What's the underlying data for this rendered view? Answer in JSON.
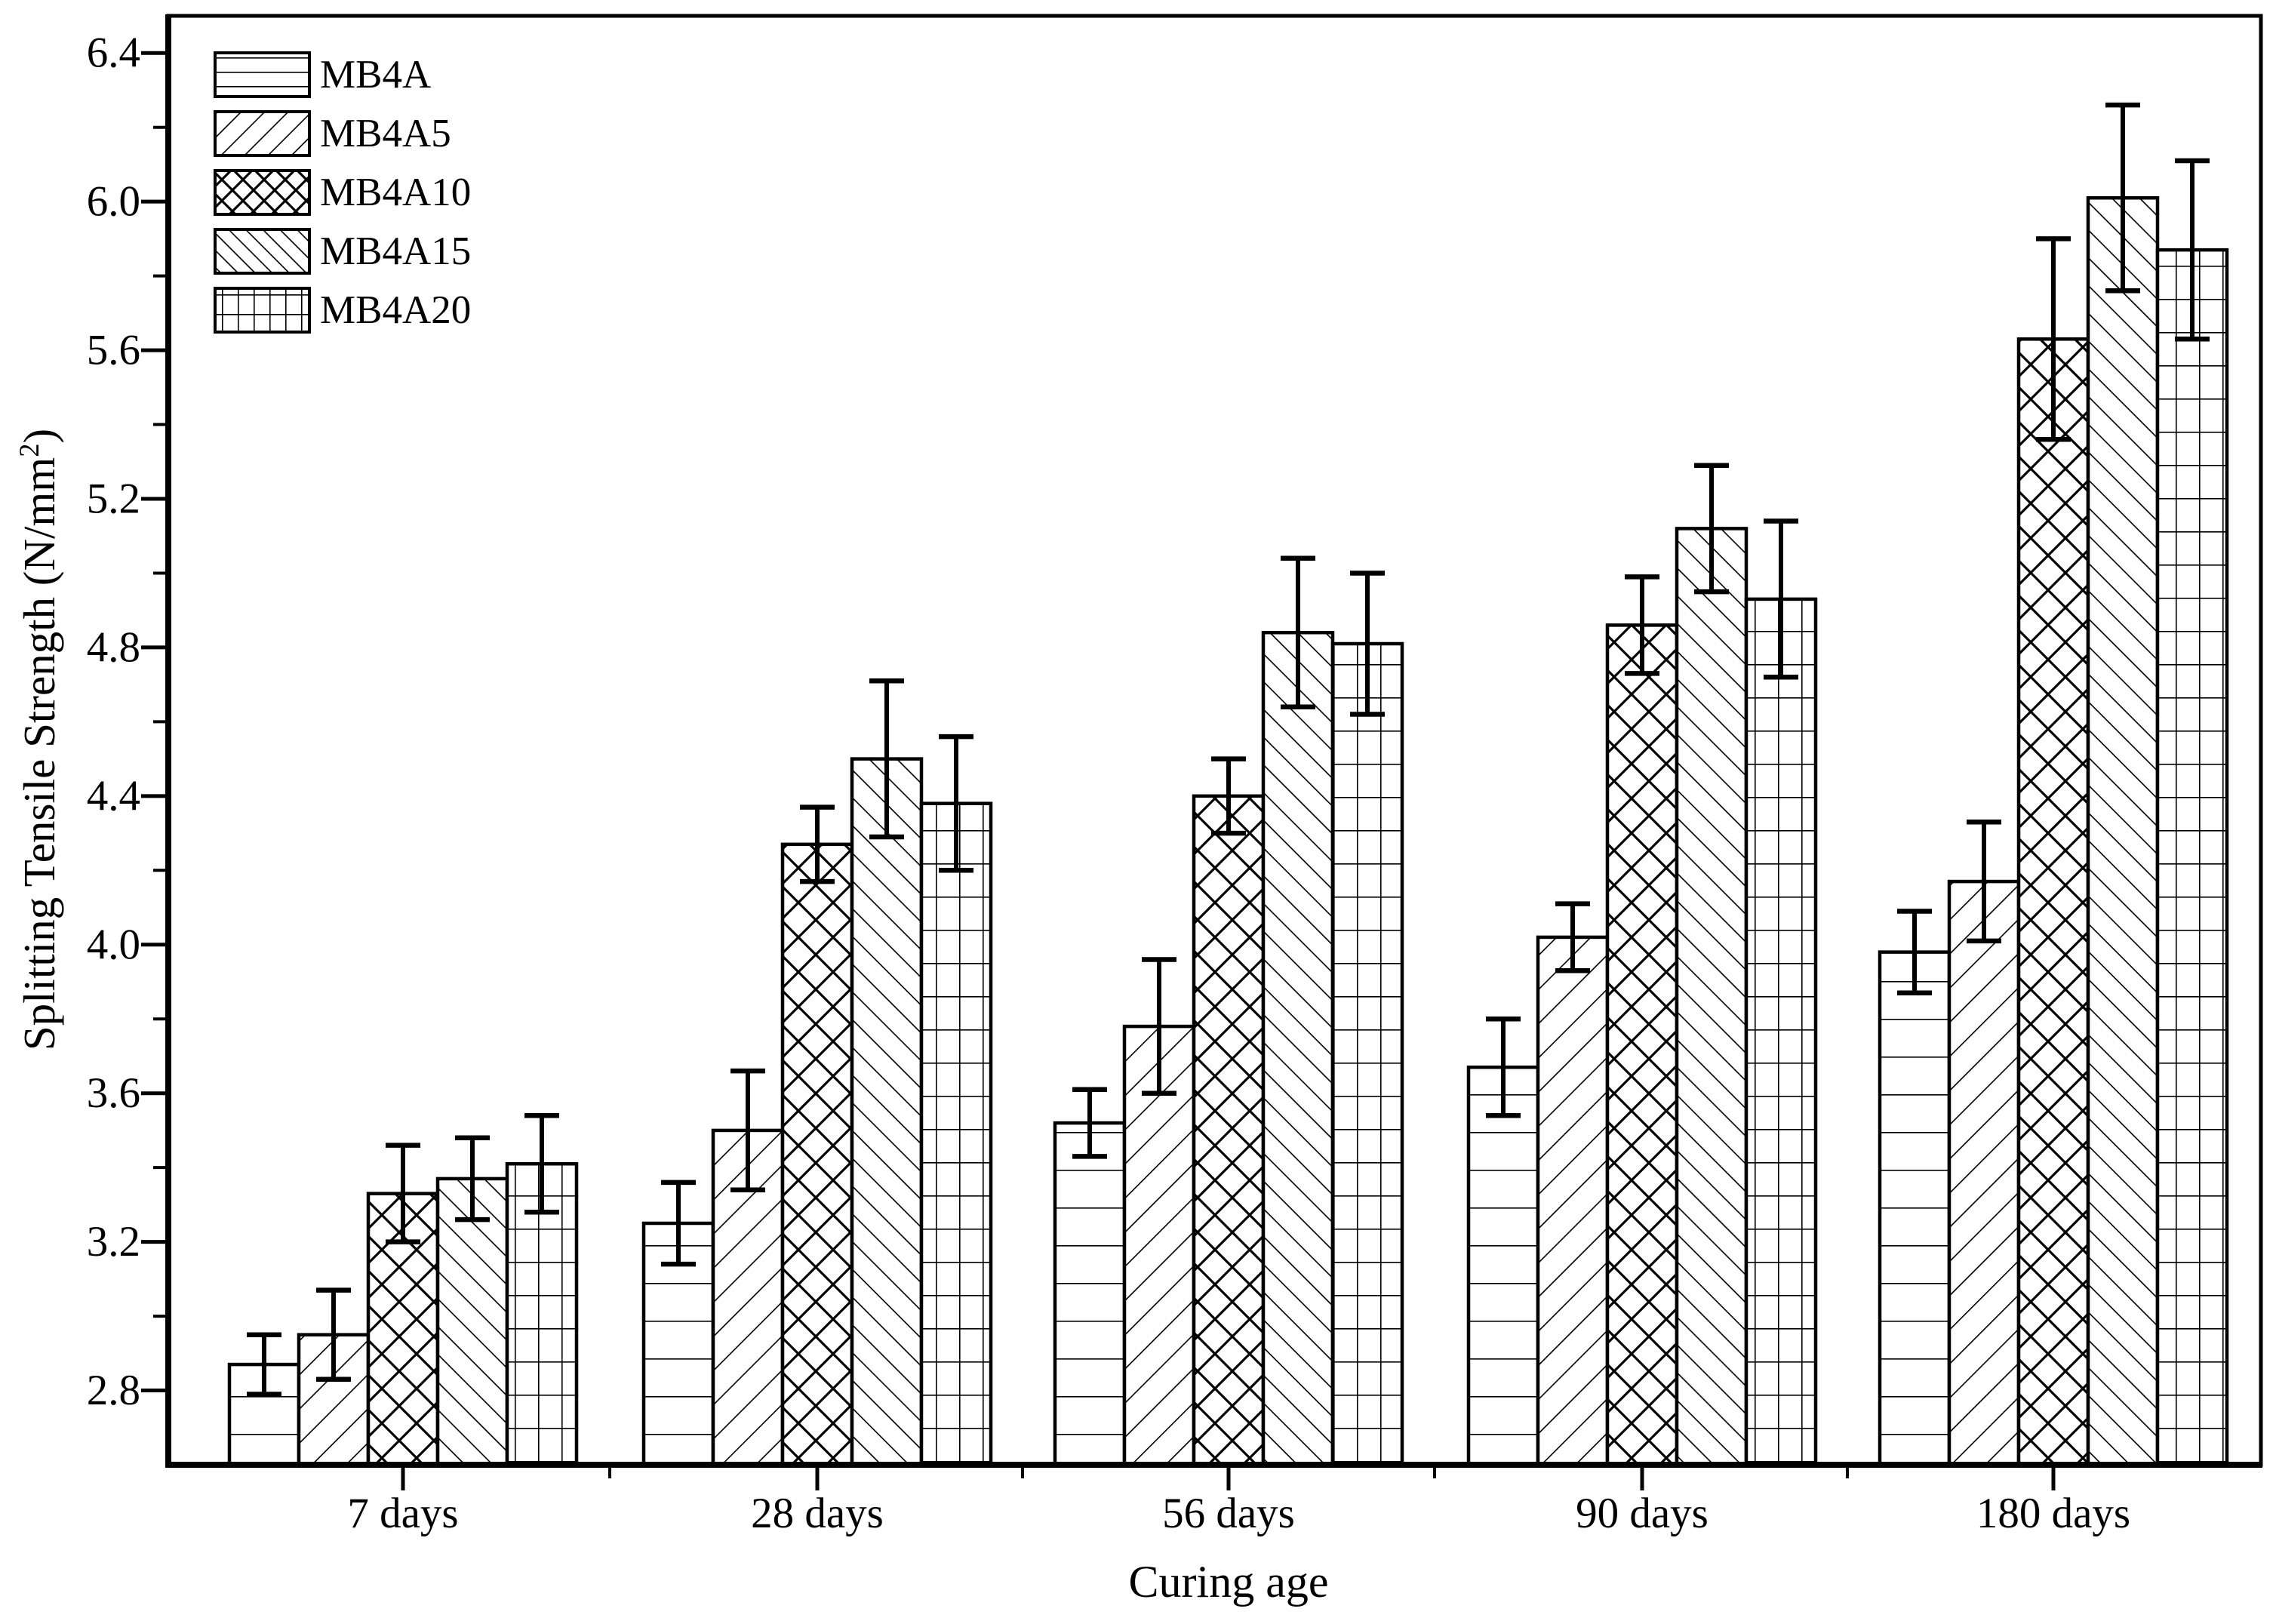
{
  "chart_data": {
    "type": "bar",
    "title": "",
    "xlabel": "Curing age",
    "ylabel": "Splitting Tensile Strength (N/mm²)",
    "ylabel_main": "Splitting Tensile Strength (N/mm",
    "ylabel_sup": "2",
    "ylabel_close": ")",
    "categories": [
      "7 days",
      "28 days",
      "56 days",
      "90 days",
      "180 days"
    ],
    "series": [
      {
        "name": "MB4A",
        "pattern": "horizontal-lines",
        "values": [
          2.87,
          3.25,
          3.52,
          3.67,
          3.98
        ],
        "errors": [
          0.08,
          0.11,
          0.09,
          0.13,
          0.11
        ]
      },
      {
        "name": "MB4A5",
        "pattern": "diagonal-forward",
        "values": [
          2.95,
          3.5,
          3.78,
          4.02,
          4.17
        ],
        "errors": [
          0.12,
          0.16,
          0.18,
          0.09,
          0.16
        ]
      },
      {
        "name": "MB4A10",
        "pattern": "diagonal-cross",
        "values": [
          3.33,
          4.27,
          4.4,
          4.86,
          5.63
        ],
        "errors": [
          0.13,
          0.1,
          0.1,
          0.13,
          0.27
        ]
      },
      {
        "name": "MB4A15",
        "pattern": "diagonal-backward",
        "values": [
          3.37,
          4.5,
          4.84,
          5.12,
          6.01
        ],
        "errors": [
          0.11,
          0.21,
          0.2,
          0.17,
          0.25
        ]
      },
      {
        "name": "MB4A20",
        "pattern": "grid",
        "values": [
          3.41,
          4.38,
          4.81,
          4.93,
          5.87
        ],
        "errors": [
          0.13,
          0.18,
          0.19,
          0.21,
          0.24
        ]
      }
    ],
    "ylim": [
      2.6,
      6.5
    ],
    "y_major_ticks": [
      2.8,
      3.2,
      3.6,
      4.0,
      4.4,
      4.8,
      5.2,
      5.6,
      6.0,
      6.4
    ],
    "y_minor_ticks": [
      3.0,
      3.4,
      3.8,
      4.2,
      4.6,
      5.0,
      5.4,
      5.8,
      6.2
    ],
    "legend": {
      "position": "top-left",
      "entries": [
        "MB4A",
        "MB4A5",
        "MB4A10",
        "MB4A15",
        "MB4A20"
      ]
    },
    "grid": false,
    "colors": {
      "foreground": "#000000",
      "background": "#ffffff"
    },
    "error_bars": true
  }
}
